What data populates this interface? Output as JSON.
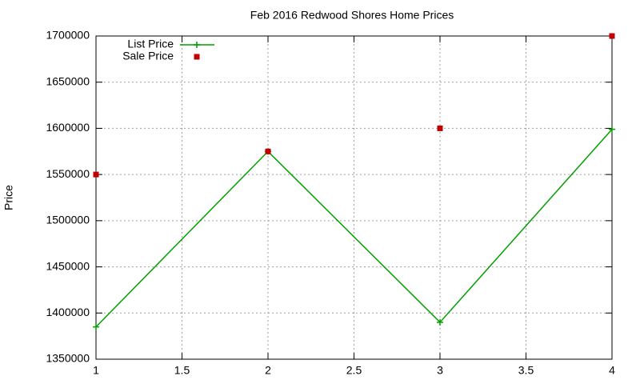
{
  "chart_data": {
    "type": "line",
    "title": "Feb 2016 Redwood Shores Home Prices",
    "y_label": "Price",
    "x": [
      1,
      2,
      3,
      4
    ],
    "series": [
      {
        "name": "List Price",
        "color": "#00a000",
        "style": "linespoints",
        "values": [
          1385000,
          1575000,
          1390000,
          1599000
        ]
      },
      {
        "name": "Sale Price",
        "color": "#c00000",
        "style": "points",
        "values": [
          1550000,
          1575000,
          1600000,
          1700000
        ]
      }
    ],
    "xlim": [
      1,
      4
    ],
    "xticks": [
      1,
      1.5,
      2,
      2.5,
      3,
      3.5,
      4
    ],
    "ylim": [
      1350000,
      1700000
    ],
    "yticks": [
      1350000,
      1400000,
      1450000,
      1500000,
      1550000,
      1600000,
      1650000,
      1700000
    ],
    "grid": true,
    "legend": "top-left"
  }
}
